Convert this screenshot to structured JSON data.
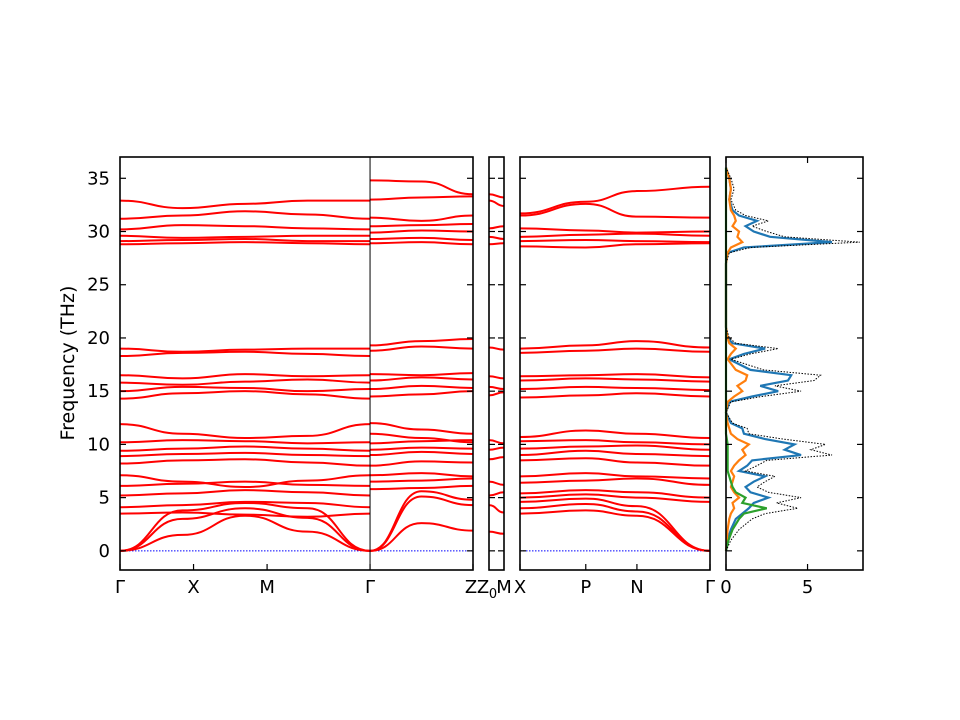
{
  "chart_data": {
    "type": "line",
    "ylabel": "Frequency (THz)",
    "ylim": [
      -1.8,
      37
    ],
    "yticks": [
      0,
      5,
      10,
      15,
      20,
      25,
      30,
      35
    ],
    "colors": {
      "bands": "#ff0000",
      "zero_line": "#0000ff",
      "dos_total": "#000000",
      "dos_series": [
        "#1f77b4",
        "#ff7f0e",
        "#2ca02c"
      ]
    },
    "band_segments": [
      {
        "labels": [
          "Γ",
          "X",
          "M",
          "Γ",
          "Z"
        ],
        "label_positions": [
          0,
          0.5,
          1.0,
          1.7,
          2.4
        ],
        "distance_range": [
          0,
          2.4
        ],
        "branches": [
          {
            "x": [
              0,
              1.7
            ],
            "top": 0.0
          },
          {
            "x": [
              1.7,
              2.4
            ],
            "top": 0.0
          }
        ]
      },
      {
        "labels": [
          "Z",
          "M"
        ],
        "label_positions": [
          0,
          0.1
        ],
        "distance_range": [
          0,
          0.1
        ],
        "branches": [
          {
            "x": [
              0,
              0.1
            ],
            "top": 0.0
          }
        ]
      },
      {
        "labels": [
          "X",
          "P",
          "N",
          "Γ"
        ],
        "label_positions": [
          0,
          0.45,
          0.8,
          1.3
        ],
        "distance_range": [
          0,
          1.3
        ],
        "branches": [
          {
            "x": [
              0,
              1.3
            ],
            "top": 0.0
          }
        ]
      }
    ],
    "boundary_labels": [
      "Z",
      "Z",
      "0",
      "M",
      "X"
    ],
    "bands_left": [
      [
        0,
        1.5,
        3.3,
        1.8,
        0
      ],
      [
        0,
        3.0,
        4.0,
        3.1,
        0
      ],
      [
        0,
        3.8,
        4.5,
        4.0,
        0
      ],
      [
        3.5,
        3.6,
        3.4,
        3.2,
        3.5
      ],
      [
        4.1,
        4.3,
        4.6,
        4.5,
        4.1
      ],
      [
        5.2,
        5.4,
        5.7,
        5.5,
        5.2
      ],
      [
        6.1,
        6.3,
        6.5,
        6.2,
        6.1
      ],
      [
        7.1,
        6.5,
        6.0,
        6.6,
        7.1
      ],
      [
        8.2,
        8.5,
        8.6,
        8.3,
        8.0
      ],
      [
        8.9,
        9.1,
        9.2,
        9.0,
        8.9
      ],
      [
        9.4,
        9.6,
        9.8,
        9.6,
        9.4
      ],
      [
        10.2,
        10.4,
        10.3,
        10.1,
        10.2
      ],
      [
        11.9,
        11.0,
        10.6,
        10.8,
        11.9
      ],
      [
        14.3,
        14.8,
        15.0,
        14.7,
        14.3
      ],
      [
        15.0,
        15.4,
        15.3,
        15.0,
        15.2
      ],
      [
        15.8,
        15.6,
        15.9,
        16.1,
        15.8
      ],
      [
        16.5,
        16.2,
        16.6,
        16.4,
        16.5
      ],
      [
        18.3,
        18.6,
        18.7,
        18.5,
        18.3
      ],
      [
        19.0,
        18.7,
        18.9,
        19.0,
        19.0
      ],
      [
        28.8,
        28.9,
        29.0,
        28.9,
        28.8
      ],
      [
        29.1,
        29.2,
        29.3,
        29.1,
        29.1
      ],
      [
        29.6,
        29.4,
        29.5,
        29.6,
        29.6
      ],
      [
        30.2,
        30.6,
        30.5,
        30.3,
        30.2
      ],
      [
        31.2,
        31.5,
        31.9,
        31.6,
        31.2
      ],
      [
        32.9,
        32.2,
        32.6,
        32.9,
        32.9
      ]
    ],
    "bands_right": [
      [
        0,
        2.6,
        1.9
      ],
      [
        0,
        5.1,
        4.3
      ],
      [
        0,
        5.6,
        4.8
      ],
      [
        5.8,
        5.9,
        6.1
      ],
      [
        6.5,
        6.6,
        6.8
      ],
      [
        7.1,
        7.3,
        7.0
      ],
      [
        8.0,
        8.4,
        8.3
      ],
      [
        9.0,
        9.3,
        9.1
      ],
      [
        9.5,
        9.7,
        9.6
      ],
      [
        10.1,
        10.3,
        10.4
      ],
      [
        11.0,
        10.6,
        10.2
      ],
      [
        12.0,
        11.4,
        11.0
      ],
      [
        14.5,
        14.7,
        15.0
      ],
      [
        15.2,
        15.5,
        15.3
      ],
      [
        16.0,
        16.3,
        16.1
      ],
      [
        16.6,
        16.5,
        16.7
      ],
      [
        18.8,
        19.2,
        19.0
      ],
      [
        19.3,
        19.7,
        19.9
      ],
      [
        28.9,
        29.0,
        28.8
      ],
      [
        29.3,
        29.4,
        29.2
      ],
      [
        29.9,
        30.1,
        30.0
      ],
      [
        30.5,
        30.6,
        30.7
      ],
      [
        31.3,
        31.0,
        31.5
      ],
      [
        33.0,
        33.2,
        33.3
      ],
      [
        34.8,
        34.7,
        33.5
      ]
    ],
    "bands_zm": [
      [
        1.8,
        1.6
      ],
      [
        4.3,
        3.6
      ],
      [
        5.2,
        5.5
      ],
      [
        6.5,
        6.2
      ],
      [
        8.6,
        8.8
      ],
      [
        9.5,
        9.7
      ],
      [
        10.4,
        10.1
      ],
      [
        14.6,
        14.9
      ],
      [
        15.4,
        15.2
      ],
      [
        16.4,
        16.2
      ],
      [
        19.1,
        18.9
      ],
      [
        28.8,
        28.9
      ],
      [
        29.5,
        29.3
      ],
      [
        30.3,
        30.5
      ],
      [
        32.9,
        32.4
      ],
      [
        33.5,
        33.2
      ]
    ],
    "bands_xpng": [
      [
        3.5,
        3.8,
        3.3,
        0
      ],
      [
        4.0,
        4.4,
        3.7,
        0
      ],
      [
        4.6,
        4.9,
        4.2,
        0
      ],
      [
        5.0,
        5.3,
        5.0,
        4.6
      ],
      [
        5.4,
        5.7,
        5.5,
        5.0
      ],
      [
        6.4,
        6.6,
        6.8,
        6.2
      ],
      [
        7.0,
        7.3,
        7.0,
        6.8
      ],
      [
        8.5,
        8.7,
        8.3,
        8.0
      ],
      [
        9.0,
        9.4,
        9.1,
        8.9
      ],
      [
        9.6,
        9.8,
        9.9,
        9.5
      ],
      [
        10.3,
        10.4,
        10.2,
        10.0
      ],
      [
        10.7,
        11.3,
        11.0,
        10.6
      ],
      [
        14.4,
        14.6,
        14.8,
        14.5
      ],
      [
        15.2,
        15.4,
        15.3,
        15.1
      ],
      [
        16.0,
        16.2,
        16.1,
        15.9
      ],
      [
        16.4,
        16.5,
        16.6,
        16.3
      ],
      [
        18.6,
        18.8,
        19.0,
        18.7
      ],
      [
        19.0,
        19.3,
        19.7,
        19.1
      ],
      [
        28.6,
        28.5,
        28.8,
        28.9
      ],
      [
        29.1,
        29.2,
        29.1,
        29.0
      ],
      [
        29.5,
        29.7,
        29.8,
        29.6
      ],
      [
        30.3,
        30.1,
        29.9,
        30.0
      ],
      [
        31.5,
        32.6,
        31.4,
        31.3
      ],
      [
        31.7,
        32.8,
        33.8,
        34.2
      ]
    ],
    "dos": {
      "xlim": [
        0,
        8.4
      ],
      "xticks": [
        0,
        5
      ],
      "frequencies": [
        0,
        1,
        2,
        3,
        3.5,
        4,
        4.5,
        5,
        5.5,
        6,
        6.5,
        7,
        7.5,
        8,
        8.5,
        9,
        9.5,
        10,
        10.5,
        11,
        11.5,
        12,
        13,
        14,
        14.5,
        15,
        15.5,
        16,
        16.5,
        17,
        18,
        18.5,
        19,
        19.5,
        20,
        21,
        27,
        28,
        28.5,
        29,
        29.5,
        30,
        30.5,
        31,
        31.5,
        32,
        33,
        34,
        35,
        36
      ],
      "total": [
        0,
        0.3,
        0.8,
        1.6,
        2.4,
        4.4,
        3.1,
        4.6,
        2.6,
        1.9,
        2.4,
        3.0,
        1.2,
        1.9,
        2.5,
        6.5,
        5.2,
        6.1,
        3.5,
        1.4,
        1.3,
        0.4,
        0,
        0.3,
        2.2,
        4.6,
        3.0,
        5.4,
        5.8,
        2.3,
        0.3,
        1.5,
        3.2,
        0.6,
        0.2,
        0,
        0,
        0.2,
        1.5,
        8.2,
        3.6,
        2.5,
        1.6,
        2.6,
        1.2,
        0.6,
        0.3,
        0.5,
        0.3,
        0
      ],
      "series": [
        {
          "values": [
            0,
            0.1,
            0.3,
            0.6,
            1.0,
            1.4,
            1.7,
            2.6,
            1.5,
            1.2,
            1.7,
            2.4,
            0.8,
            1.3,
            1.6,
            4.6,
            3.6,
            4.2,
            2.4,
            1.1,
            1.0,
            0.3,
            0,
            0.2,
            1.6,
            3.2,
            2.1,
            3.8,
            4.0,
            1.5,
            0.2,
            1.1,
            2.4,
            0.4,
            0.1,
            0,
            0,
            0.1,
            1.1,
            6.5,
            2.7,
            1.7,
            1.2,
            1.9,
            0.8,
            0.4,
            0.2,
            0.3,
            0.2,
            0
          ]
        },
        {
          "values": [
            0,
            0.05,
            0.1,
            0.2,
            0.3,
            0.5,
            0.4,
            0.8,
            0.5,
            0.3,
            0.4,
            0.5,
            0.3,
            0.5,
            0.8,
            1.2,
            1.0,
            1.4,
            0.7,
            0.3,
            0.2,
            0.1,
            0,
            0.1,
            0.5,
            1.0,
            0.7,
            1.2,
            1.3,
            0.6,
            0.1,
            0.3,
            0.6,
            0.2,
            0.1,
            0,
            0,
            0.1,
            0.3,
            1.0,
            0.7,
            0.8,
            0.4,
            0.6,
            0.5,
            0.3,
            0.2,
            0.3,
            0.2,
            0
          ]
        },
        {
          "values": [
            0,
            0.15,
            0.4,
            0.8,
            1.1,
            2.5,
            1.0,
            1.2,
            0.6,
            0.4,
            0.3,
            0.2,
            0.1,
            0.1,
            0.1,
            0.1,
            0.1,
            0.1,
            0.05,
            0,
            0,
            0,
            0,
            0,
            0,
            0,
            0,
            0,
            0,
            0,
            0,
            0,
            0,
            0,
            0,
            0,
            0,
            0,
            0,
            0,
            0,
            0,
            0,
            0,
            0,
            0,
            0,
            0,
            0,
            0
          ]
        }
      ]
    }
  }
}
